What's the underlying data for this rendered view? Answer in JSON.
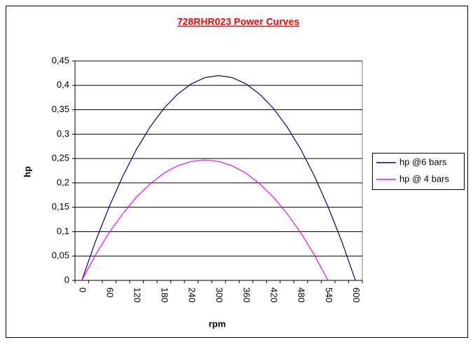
{
  "chart_data": {
    "type": "line",
    "title": "728RHR023 Power Curves",
    "xlabel": "rpm",
    "ylabel": "hp",
    "categories": [
      0,
      null,
      60,
      null,
      120,
      null,
      180,
      null,
      240,
      null,
      300,
      null,
      360,
      null,
      420,
      null,
      480,
      null,
      540,
      null,
      600
    ],
    "series": [
      {
        "name": "hp @6 bars",
        "color": "#000080",
        "values": [
          0,
          0.08,
          0.151,
          0.214,
          0.269,
          0.315,
          0.353,
          0.382,
          0.403,
          0.416,
          0.42,
          0.416,
          0.403,
          0.382,
          0.353,
          0.315,
          0.269,
          0.214,
          0.151,
          0.08,
          0
        ]
      },
      {
        "name": "hp @ 4 bars",
        "color": "#ff00ff",
        "values": [
          0,
          0.052,
          0.098,
          0.137,
          0.171,
          0.198,
          0.22,
          0.235,
          0.244,
          0.247,
          0.244,
          0.235,
          0.22,
          0.198,
          0.171,
          0.137,
          0.098,
          0.052,
          0,
          null,
          null
        ]
      }
    ],
    "ylim": [
      0,
      0.45
    ],
    "yticks": [
      0,
      {
        "value": 0.05,
        "label": "0,05"
      },
      {
        "value": 0.1,
        "label": "0,1"
      },
      {
        "value": 0.15,
        "label": "0,15"
      },
      {
        "value": 0.2,
        "label": "0,2"
      },
      {
        "value": 0.25,
        "label": "0,25"
      },
      {
        "value": 0.3,
        "label": "0,3"
      },
      {
        "value": 0.35,
        "label": "0,35"
      },
      {
        "value": 0.4,
        "label": "0,4"
      },
      {
        "value": 0.45,
        "label": "0,45"
      }
    ],
    "grid": true,
    "legend": "right"
  }
}
